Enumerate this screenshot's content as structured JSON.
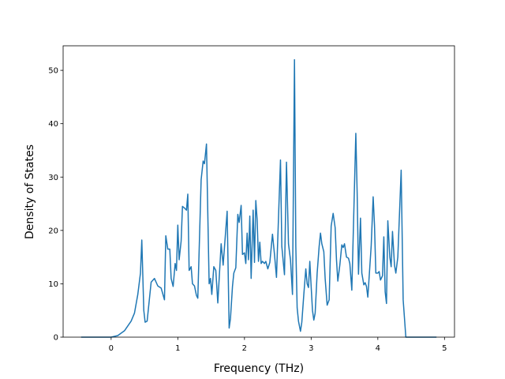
{
  "chart_data": {
    "type": "line",
    "xlabel": "Frequency (THz)",
    "ylabel": "Density of States",
    "color": "#1f77b4",
    "x": [
      -0.45,
      0,
      0.1,
      0.2,
      0.3,
      0.35,
      0.4,
      0.44,
      0.46,
      0.49,
      0.51,
      0.54,
      0.6,
      0.65,
      0.7,
      0.75,
      0.8,
      0.82,
      0.85,
      0.88,
      0.9,
      0.93,
      0.96,
      0.98,
      1.0,
      1.02,
      1.05,
      1.07,
      1.1,
      1.13,
      1.15,
      1.17,
      1.2,
      1.22,
      1.25,
      1.28,
      1.3,
      1.35,
      1.38,
      1.4,
      1.43,
      1.47,
      1.49,
      1.51,
      1.54,
      1.57,
      1.6,
      1.65,
      1.68,
      1.74,
      1.77,
      1.79,
      1.82,
      1.84,
      1.87,
      1.9,
      1.92,
      1.95,
      1.97,
      2.0,
      2.02,
      2.04,
      2.06,
      2.08,
      2.1,
      2.13,
      2.15,
      2.17,
      2.19,
      2.21,
      2.23,
      2.25,
      2.27,
      2.3,
      2.32,
      2.35,
      2.38,
      2.42,
      2.45,
      2.48,
      2.52,
      2.54,
      2.56,
      2.6,
      2.63,
      2.66,
      2.69,
      2.72,
      2.75,
      2.77,
      2.79,
      2.81,
      2.84,
      2.86,
      2.89,
      2.92,
      2.94,
      2.96,
      2.98,
      3.0,
      3.02,
      3.04,
      3.06,
      3.09,
      3.12,
      3.14,
      3.16,
      3.19,
      3.21,
      3.24,
      3.27,
      3.3,
      3.33,
      3.36,
      3.38,
      3.4,
      3.43,
      3.46,
      3.48,
      3.5,
      3.53,
      3.56,
      3.58,
      3.61,
      3.67,
      3.69,
      3.71,
      3.74,
      3.76,
      3.79,
      3.81,
      3.83,
      3.85,
      3.9,
      3.93,
      3.95,
      3.97,
      4.0,
      4.02,
      4.04,
      4.07,
      4.09,
      4.11,
      4.13,
      4.15,
      4.18,
      4.2,
      4.22,
      4.25,
      4.27,
      4.3,
      4.35,
      4.38,
      4.42,
      4.88
    ],
    "values": [
      0,
      0,
      0.3,
      1.2,
      3,
      4.5,
      8,
      12,
      18.2,
      5,
      2.8,
      3,
      10.3,
      11,
      9.6,
      9.2,
      7,
      19,
      16.5,
      16.5,
      11,
      9.5,
      13.8,
      12.5,
      21,
      14.5,
      18,
      24.5,
      24.2,
      23.8,
      26.8,
      12.5,
      13.2,
      10,
      9.6,
      7.8,
      7.3,
      29.5,
      33,
      32.5,
      36.2,
      10,
      11,
      8,
      13.2,
      12.5,
      6.4,
      17.5,
      13.5,
      23.6,
      1.7,
      3.5,
      9.5,
      12,
      13,
      23,
      21.5,
      24.7,
      15.5,
      15.8,
      13.8,
      19.5,
      14.5,
      22.7,
      11,
      23.8,
      14,
      25.6,
      22,
      14.2,
      17.8,
      13.8,
      14.2,
      13.8,
      14.2,
      12.8,
      14,
      19.3,
      15.5,
      11.2,
      26,
      33.2,
      17,
      11.7,
      32.8,
      17.5,
      14.5,
      8,
      52,
      17,
      5.5,
      3,
      1.1,
      2.8,
      8,
      12.8,
      10,
      9.3,
      14.2,
      9.5,
      5,
      3.2,
      4.5,
      12,
      17,
      19.5,
      17.5,
      16,
      11,
      6,
      7,
      20.8,
      23.2,
      20.5,
      14.5,
      10.5,
      13.5,
      17.3,
      16.8,
      17.5,
      15,
      14.8,
      13.8,
      8.8,
      38.2,
      27,
      11.8,
      22.3,
      12,
      9.8,
      10.2,
      9.5,
      7.5,
      17,
      26.3,
      21,
      12,
      12,
      12.3,
      10.7,
      11.5,
      18.8,
      8.5,
      6.3,
      21.8,
      15,
      13.2,
      19.8,
      13.5,
      12,
      15,
      31.3,
      7,
      0,
      0
    ],
    "xlim": [
      -0.72,
      5.15
    ],
    "xticks": [
      0,
      1,
      2,
      3,
      4,
      5
    ],
    "ylim": [
      0,
      54.6
    ],
    "yticks": [
      0,
      10,
      20,
      30,
      40,
      50
    ]
  }
}
